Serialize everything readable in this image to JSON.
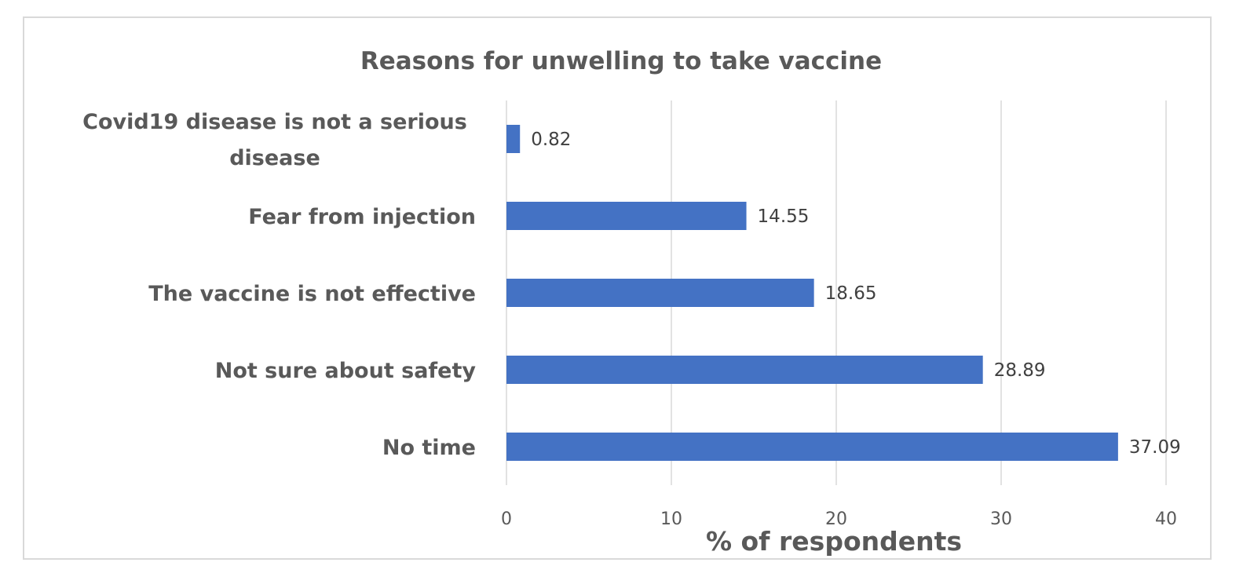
{
  "chart_data": {
    "type": "bar",
    "orientation": "horizontal",
    "title": "Reasons for unwelling to take vaccine",
    "xlabel": "% of respondents",
    "ylabel": "",
    "categories": [
      [
        "Covid19 disease is not a serious",
        "disease"
      ],
      [
        "Fear from injection"
      ],
      [
        "The vaccine is not effective"
      ],
      [
        "Not sure about safety"
      ],
      [
        "No time"
      ]
    ],
    "values": [
      0.82,
      14.55,
      18.65,
      28.89,
      37.09
    ],
    "data_labels": [
      "0.82",
      "14.55",
      "18.65",
      "28.89",
      "37.09"
    ],
    "xlim": [
      0,
      40
    ],
    "xticks": [
      "0",
      "10",
      "20",
      "30",
      "40"
    ],
    "bar_color": "#4472c4",
    "grid": "vertical",
    "legend": "none"
  }
}
